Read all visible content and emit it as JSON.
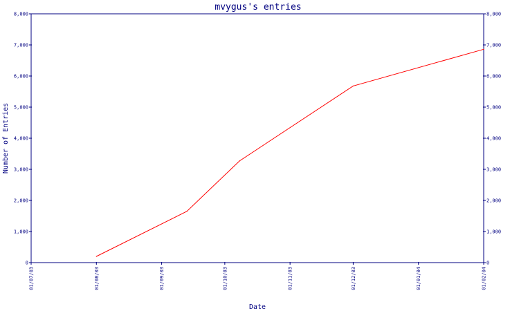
{
  "chart_data": {
    "type": "line",
    "title": "mvygus's entries",
    "xlabel": "Date",
    "ylabel": "Number of Entries",
    "x_ticks": [
      "01/07/03",
      "01/08/03",
      "01/09/03",
      "01/10/03",
      "01/11/03",
      "01/12/03",
      "01/01/04",
      "01/02/04"
    ],
    "y_ticks": [
      "0",
      "1,000",
      "2,000",
      "3,000",
      "4,000",
      "5,000",
      "6,000",
      "7,000",
      "8,000"
    ],
    "ylim": [
      0,
      8000
    ],
    "xlim": [
      "2003-07-01",
      "2004-02-01"
    ],
    "grid": false,
    "series": [
      {
        "color": "#ff0000",
        "points": [
          {
            "x": "2003-08-01",
            "y": 200
          },
          {
            "x": "2003-09-13",
            "y": 1650
          },
          {
            "x": "2003-10-08",
            "y": 3270
          },
          {
            "x": "2003-12-01",
            "y": 5680
          },
          {
            "x": "2004-02-01",
            "y": 6860
          }
        ]
      }
    ],
    "axis_color": "#000080"
  }
}
